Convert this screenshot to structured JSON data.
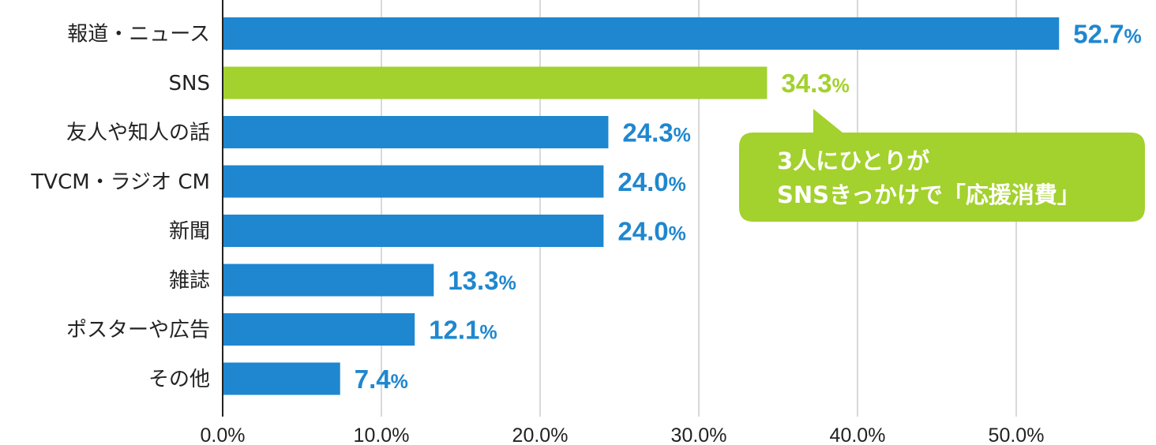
{
  "chart_data": {
    "type": "bar",
    "orientation": "horizontal",
    "categories": [
      "報道・ニュース",
      "SNS",
      "友人や知人の話",
      "TVCM・ラジオ CM",
      "新聞",
      "雑誌",
      "ポスターや広告",
      "その他"
    ],
    "values": [
      52.7,
      34.3,
      24.3,
      24.0,
      24.0,
      13.3,
      12.1,
      7.4
    ],
    "value_labels": [
      "52.7",
      "34.3",
      "24.3",
      "24.0",
      "24.0",
      "13.3",
      "12.1",
      "7.4"
    ],
    "value_unit": "%",
    "highlight_index": 1,
    "xlim": [
      0,
      56.7
    ],
    "x_ticks": [
      0,
      10,
      20,
      30,
      40,
      50
    ],
    "x_tick_labels": [
      "0.0%",
      "10.0%",
      "20.0%",
      "30.0%",
      "40.0%",
      "50.0%"
    ],
    "grid": "vertical",
    "colors": {
      "default": "#1f87cf",
      "highlight": "#a3d12d",
      "grid": "#cccccc",
      "axis": "#222222"
    },
    "callout": {
      "lines": [
        "3人にひとりが",
        "SNSきっかけで「応援消費」"
      ],
      "color": "#a3d12d",
      "points_to_index": 1
    }
  }
}
